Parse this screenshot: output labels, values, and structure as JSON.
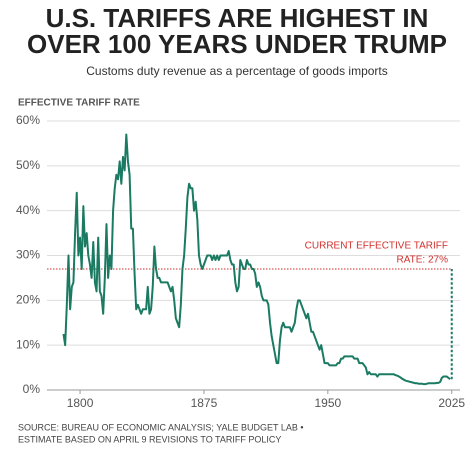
{
  "chart_data": {
    "type": "line",
    "title": [
      "U.S. TARIFFS ARE HIGHEST IN",
      "OVER 100 YEARS UNDER TRUMP"
    ],
    "subtitle": "Customs duty revenue as a percentage of goods imports",
    "y_axis_label": "EFFECTIVE TARIFF RATE",
    "source": [
      "SOURCE: BUREAU OF ECONOMIC ANALYSIS; YALE BUDGET LAB •",
      "ESTIMATE BASED ON APRIL 9 REVISIONS TO TARIFF POLICY"
    ],
    "color": "#1b7a62",
    "x": [
      1790,
      1791,
      1792,
      1793,
      1794,
      1795,
      1796,
      1797,
      1798,
      1799,
      1800,
      1801,
      1802,
      1803,
      1804,
      1805,
      1806,
      1807,
      1808,
      1809,
      1810,
      1811,
      1812,
      1813,
      1814,
      1815,
      1816,
      1817,
      1818,
      1819,
      1820,
      1821,
      1822,
      1823,
      1824,
      1825,
      1826,
      1827,
      1828,
      1829,
      1830,
      1831,
      1832,
      1833,
      1834,
      1835,
      1836,
      1837,
      1838,
      1839,
      1840,
      1841,
      1842,
      1843,
      1844,
      1845,
      1846,
      1847,
      1848,
      1849,
      1850,
      1851,
      1852,
      1853,
      1854,
      1855,
      1856,
      1857,
      1858,
      1859,
      1860,
      1861,
      1862,
      1863,
      1864,
      1865,
      1866,
      1867,
      1868,
      1869,
      1870,
      1871,
      1872,
      1873,
      1874,
      1875,
      1876,
      1877,
      1878,
      1879,
      1880,
      1881,
      1882,
      1883,
      1884,
      1885,
      1886,
      1887,
      1888,
      1889,
      1890,
      1891,
      1892,
      1893,
      1894,
      1895,
      1896,
      1897,
      1898,
      1899,
      1900,
      1901,
      1902,
      1903,
      1904,
      1905,
      1906,
      1907,
      1908,
      1909,
      1910,
      1911,
      1912,
      1913,
      1914,
      1915,
      1916,
      1917,
      1918,
      1919,
      1920,
      1921,
      1922,
      1923,
      1924,
      1925,
      1926,
      1927,
      1928,
      1929,
      1930,
      1931,
      1932,
      1933,
      1934,
      1935,
      1936,
      1937,
      1938,
      1939,
      1940,
      1941,
      1942,
      1943,
      1944,
      1945,
      1946,
      1947,
      1948,
      1949,
      1950,
      1951,
      1952,
      1953,
      1954,
      1955,
      1956,
      1957,
      1958,
      1959,
      1960,
      1961,
      1962,
      1963,
      1964,
      1965,
      1966,
      1967,
      1968,
      1969,
      1970,
      1971,
      1972,
      1973,
      1974,
      1975,
      1976,
      1977,
      1978,
      1979,
      1980,
      1981,
      1982,
      1983,
      1984,
      1985,
      1986,
      1987,
      1988,
      1989,
      1990,
      1991,
      1992,
      1993,
      1994,
      1995,
      1996,
      1997,
      1998,
      1999,
      2000,
      2001,
      2002,
      2003,
      2004,
      2005,
      2006,
      2007,
      2008,
      2009,
      2010,
      2011,
      2012,
      2013,
      2014,
      2015,
      2016,
      2017,
      2018,
      2019,
      2020,
      2021,
      2022,
      2023,
      2024
    ],
    "values": [
      12.5,
      10,
      19,
      30,
      18,
      23,
      24,
      35,
      44,
      30,
      34,
      27,
      41,
      32,
      35,
      30,
      28,
      25,
      33,
      24,
      22,
      34,
      22,
      21,
      17,
      25,
      37,
      25,
      30,
      27,
      40,
      45,
      48,
      47,
      51,
      46,
      52,
      49,
      57,
      51,
      48,
      36,
      36,
      26,
      18,
      19,
      18,
      17,
      18,
      18,
      18,
      23,
      17,
      18,
      23,
      32,
      27,
      25,
      25,
      24,
      24,
      24,
      24,
      24,
      23,
      22,
      23,
      20,
      16,
      15,
      14,
      19,
      27,
      30,
      36,
      43,
      46,
      45,
      45,
      40,
      42,
      38,
      30,
      28,
      27,
      28,
      29,
      30,
      30,
      30,
      29,
      30,
      29,
      30,
      29,
      30,
      30,
      30,
      30,
      30,
      31,
      29,
      28,
      28,
      24,
      22,
      23,
      29,
      28,
      27,
      27,
      29,
      28,
      28,
      27,
      27,
      26,
      23,
      24,
      23,
      21,
      20,
      20,
      20,
      19,
      15,
      12,
      10,
      8,
      6,
      6,
      11,
      14,
      15,
      14,
      14,
      14,
      14,
      13,
      14,
      15,
      18,
      20,
      20,
      19,
      18,
      17,
      16,
      17,
      15,
      13,
      13,
      12,
      11,
      10,
      9,
      10,
      8,
      6,
      6,
      6,
      5.5,
      5.5,
      5.5,
      5.5,
      5.5,
      6,
      6,
      7,
      7,
      7.5,
      7.5,
      7.5,
      7.5,
      7.5,
      7.5,
      7,
      7,
      7,
      6,
      6,
      6,
      5.5,
      5,
      3.5,
      4,
      3.5,
      3.5,
      3.5,
      3.5,
      3,
      3.5,
      3.5,
      3.5,
      3.5,
      3.5,
      3.5,
      3.5,
      3.5,
      3.5,
      3.5,
      3.3,
      3.2,
      3,
      2.8,
      2.5,
      2.3,
      2.1,
      2,
      1.9,
      1.8,
      1.7,
      1.6,
      1.5,
      1.5,
      1.4,
      1.4,
      1.4,
      1.3,
      1.3,
      1.4,
      1.5,
      1.5,
      1.5,
      1.5,
      1.5,
      1.6,
      1.6,
      1.8,
      2.7,
      3,
      3,
      3,
      2.7,
      2.4
    ],
    "estimate": {
      "x": [
        2025,
        2025
      ],
      "values": [
        2.4,
        27
      ],
      "color": "#1b7a62"
    },
    "reference_line": {
      "value": 27,
      "color": "#d0312d",
      "label": [
        "CURRENT EFFECTIVE TARIFF",
        "RATE: 27%"
      ]
    },
    "xlim": [
      1780,
      2030
    ],
    "ylim": [
      0,
      60
    ],
    "xticks": [
      1800,
      1875,
      1950,
      2025
    ],
    "yticks": [
      {
        "value": 0,
        "label": "0%"
      },
      {
        "value": 10,
        "label": "10%"
      },
      {
        "value": 20,
        "label": "20%"
      },
      {
        "value": 30,
        "label": "30%"
      },
      {
        "value": 40,
        "label": "40%"
      },
      {
        "value": 50,
        "label": "50%"
      },
      {
        "value": 60,
        "label": "60%"
      }
    ],
    "grid": true
  }
}
